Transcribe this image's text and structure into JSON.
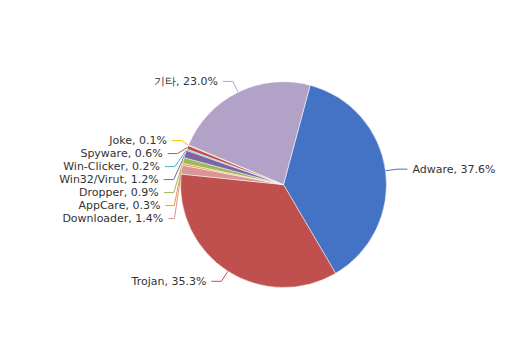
{
  "chart_data": {
    "type": "pie",
    "categories": [
      "Adware",
      "Trojan",
      "Downloader",
      "AppCare",
      "Dropper",
      "Win32/Virut",
      "Win-Clicker",
      "Spyware",
      "Joke",
      "기타"
    ],
    "values": [
      37.6,
      35.3,
      1.4,
      0.3,
      0.9,
      1.2,
      0.2,
      0.6,
      0.1,
      23.0
    ],
    "value_labels": [
      "Adware, 37.6%",
      "Trojan, 35.3%",
      "Downloader, 1.4%",
      "AppCare, 0.3%",
      "Dropper, 0.9%",
      "Win32/Virut, 1.2%",
      "Win-Clicker, 0.2%",
      "Spyware, 0.6%",
      "Joke, 0.1%",
      "기타, 23.0%"
    ],
    "colors": [
      "#4472c4",
      "#c0504d",
      "#d99694",
      "#f79646",
      "#9bbb59",
      "#8064a2",
      "#4bacc6",
      "#c0504d",
      "#ffc000",
      "#b3a2c7"
    ],
    "data_labels": true
  }
}
